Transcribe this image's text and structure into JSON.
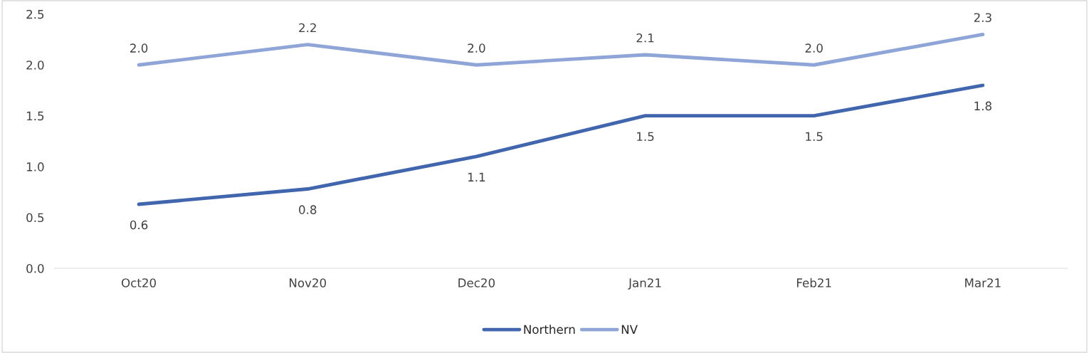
{
  "chart_data": {
    "type": "line",
    "categories": [
      "Oct20",
      "Nov20",
      "Dec20",
      "Jan21",
      "Feb21",
      "Mar21"
    ],
    "series": [
      {
        "name": "Northern",
        "color": "#4166ad",
        "values": [
          0.63,
          0.78,
          1.1,
          1.5,
          1.5,
          1.8
        ],
        "value_labels": [
          "0.6",
          "0.8",
          "1.1",
          "1.5",
          "1.5",
          "1.8"
        ]
      },
      {
        "name": "NV",
        "color": "#8fa5d7",
        "values": [
          2.0,
          2.2,
          2.0,
          2.1,
          2.0,
          2.3
        ],
        "value_labels": [
          "2.0",
          "2.2",
          "2.0",
          "2.1",
          "2.0",
          "2.3"
        ]
      }
    ],
    "ylim": [
      0,
      2.5
    ],
    "yticks": [
      {
        "value": 0,
        "label": "0.0"
      },
      {
        "value": 0.5,
        "label": "0.5"
      },
      {
        "value": 1,
        "label": "1.0"
      },
      {
        "value": 1.5,
        "label": "1.5"
      },
      {
        "value": 2,
        "label": "2.0"
      },
      {
        "value": 2.5,
        "label": "2.5"
      }
    ],
    "grid": false,
    "legend": "bottom",
    "marker": "none",
    "line_style": "solid"
  }
}
